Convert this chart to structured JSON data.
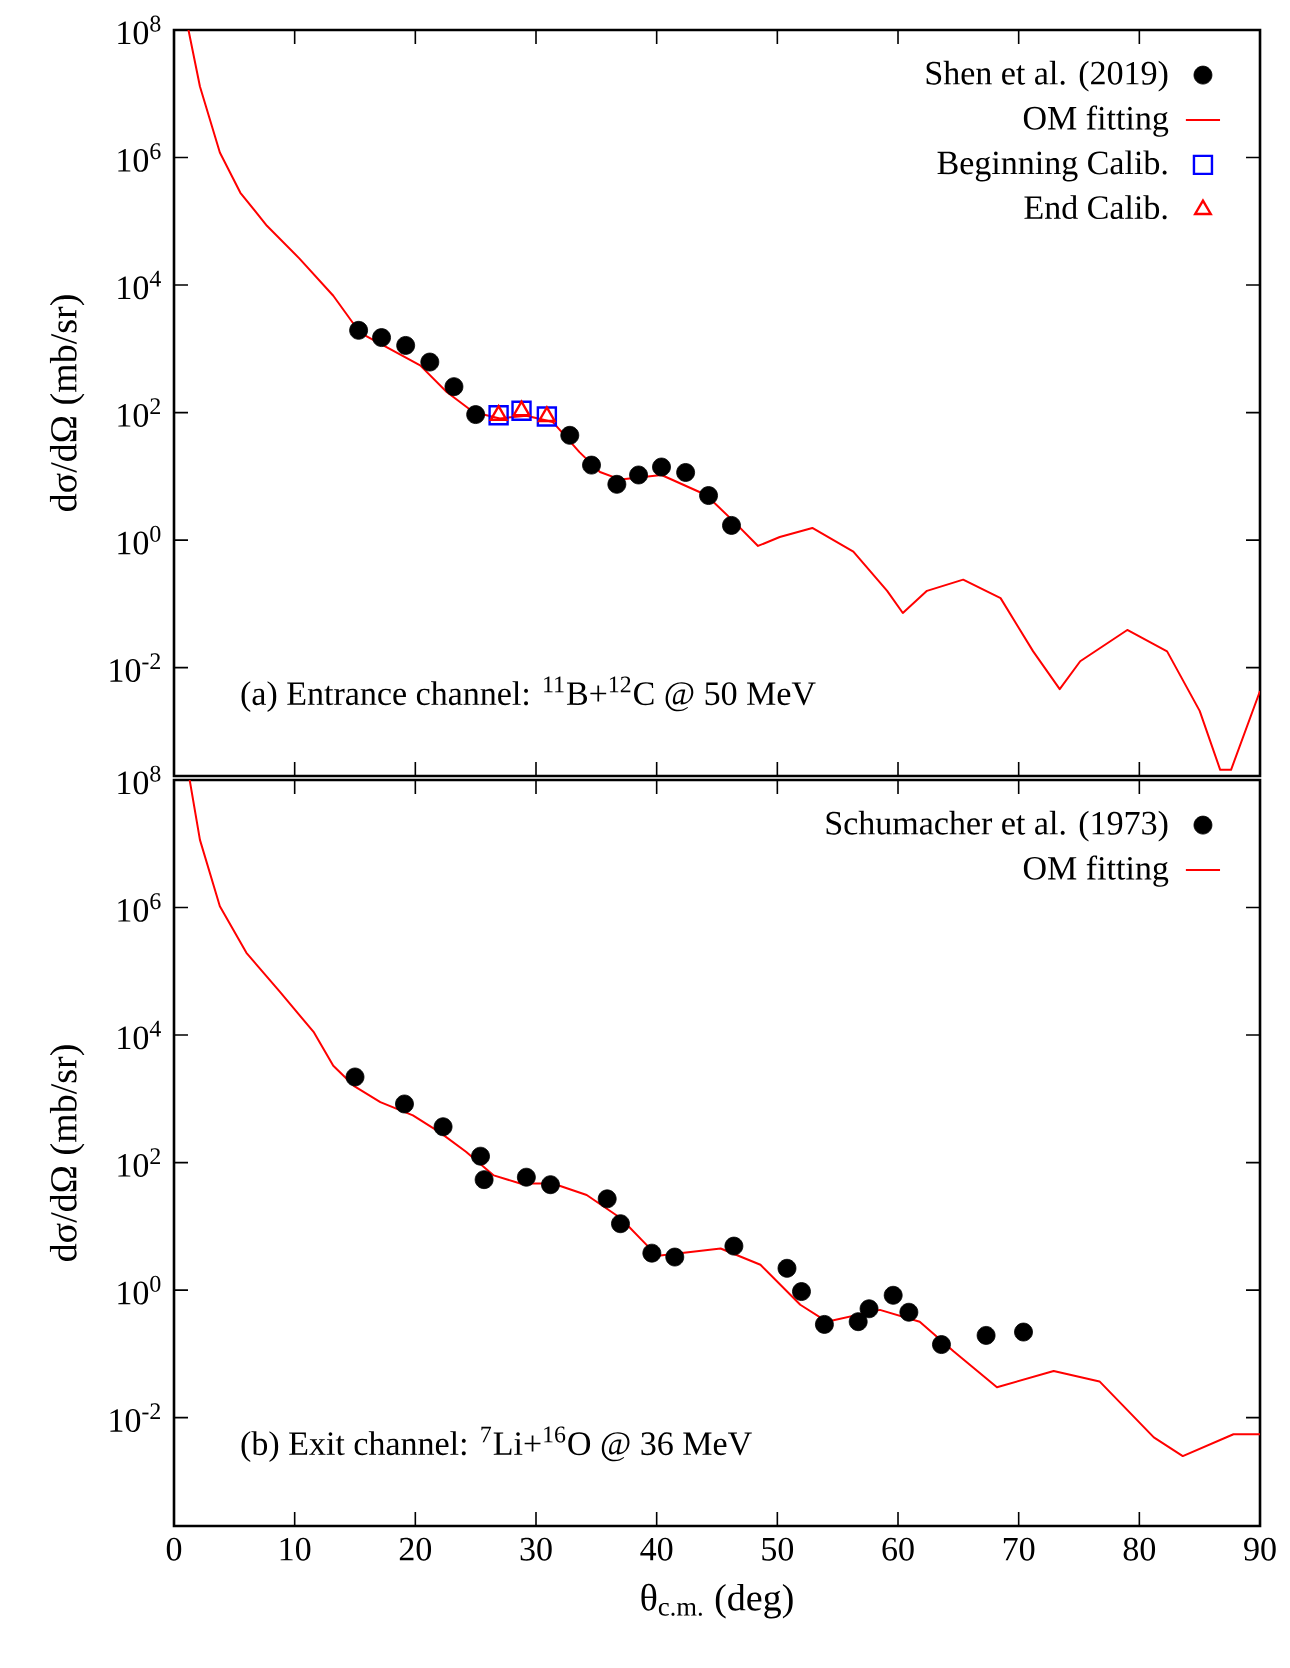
{
  "chart_data": [
    {
      "type": "scatter",
      "log": "y",
      "legend": "top right",
      "tick_labels": "y",
      "ylabel": "dσ/dΩ (mb/sr)",
      "xlim": [
        0,
        90
      ],
      "ylim": [
        0.0002,
        100000000
      ],
      "xticks": [
        0,
        10,
        20,
        30,
        40,
        50,
        60,
        70,
        80,
        90
      ],
      "yticks": [
        {
          "value": 0.01,
          "label": "10$^{-2}$"
        },
        {
          "value": 1,
          "label": "10$^{0}$"
        },
        {
          "value": 100,
          "label": "10$^{2}$"
        },
        {
          "value": 10000,
          "label": "10$^{4}$"
        },
        {
          "value": 1000000,
          "label": "10$^{6}$"
        },
        {
          "value": 100000000,
          "label": "10$^{8}$"
        }
      ],
      "annotations": [
        "(a) Entrance channel: $^{11}$B+$^{12}$C @ 50 MeV"
      ],
      "series": [
        {
          "name": "Shen et al. (2019)",
          "marker": "circle",
          "color": "#000000",
          "x": [
            15.3,
            17.2,
            19.2,
            21.2,
            23.2,
            25.0,
            32.8,
            34.6,
            36.7,
            38.5,
            40.4,
            42.4,
            44.3,
            46.2
          ],
          "values": [
            1950,
            1500,
            1130,
            620,
            255,
            93,
            44,
            15,
            7.5,
            10.5,
            14,
            11.5,
            5.0,
            1.7
          ]
        },
        {
          "name": "OM fitting",
          "type": "line",
          "marker": "none",
          "color": "#ff0000",
          "x": [
            1.2,
            2.15,
            3.8,
            5.5,
            7.7,
            10.4,
            13.2,
            15.4,
            20.4,
            22.6,
            24.8,
            27.0,
            29.2,
            31.4,
            33.6,
            35.3,
            37.0,
            40.4,
            44.1,
            46.4,
            48.4,
            50.2,
            52.9,
            56.3,
            59.1,
            60.4,
            62.4,
            65.4,
            68.5,
            71.2,
            73.4,
            75.1,
            79.0,
            82.3,
            85.0,
            86.7,
            87.6,
            90
          ],
          "values": [
            100000000,
            13000000,
            1200000,
            280000,
            85000,
            26000,
            6800,
            1800,
            550,
            210,
            102,
            81,
            89,
            71,
            24,
            11.7,
            8.9,
            10.5,
            5.1,
            1.95,
            0.81,
            1.12,
            1.55,
            0.66,
            0.16,
            0.072,
            0.16,
            0.24,
            0.123,
            0.018,
            0.0046,
            0.0126,
            0.039,
            0.018,
            0.0021,
            0.00025,
            0.00025,
            0.0043
          ]
        },
        {
          "name": "Beginning Calib.",
          "marker": "square",
          "color": "#0000ff",
          "x": [
            26.9,
            28.8,
            30.9
          ],
          "values": [
            91,
            107,
            87
          ]
        },
        {
          "name": "End Calib.",
          "marker": "triangle",
          "color": "#ff0000",
          "x": [
            26.9,
            28.8,
            30.9
          ],
          "values": [
            91,
            107,
            87
          ]
        }
      ]
    },
    {
      "type": "scatter",
      "log": "y",
      "legend": "top right",
      "xlabel": "θ$_{c.m.}$ (deg)",
      "ylabel": "dσ/dΩ (mb/sr)",
      "xlim": [
        0,
        90
      ],
      "ylim": [
        0.0002,
        100000000
      ],
      "xticks": [
        0,
        10,
        20,
        30,
        40,
        50,
        60,
        70,
        80,
        90
      ],
      "yticks": [
        {
          "value": 0.01,
          "label": "10$^{-2}$"
        },
        {
          "value": 1,
          "label": "10$^{0}$"
        },
        {
          "value": 100,
          "label": "10$^{2}$"
        },
        {
          "value": 10000,
          "label": "10$^{4}$"
        },
        {
          "value": 1000000,
          "label": "10$^{6}$"
        },
        {
          "value": 100000000,
          "label": "10$^{8}$"
        }
      ],
      "annotations": [
        "(b) Exit channel: $^{7}$Li+$^{16}$O @ 36 MeV"
      ],
      "series": [
        {
          "name": "Schumacher et al. (1973)",
          "marker": "circle",
          "color": "#000000",
          "x": [
            15.0,
            19.1,
            22.3,
            25.4,
            25.7,
            29.2,
            31.2,
            35.9,
            37.0,
            39.6,
            41.5,
            46.4,
            50.8,
            52.0,
            53.9,
            56.7,
            57.6,
            59.6,
            60.9,
            63.6,
            67.3,
            70.4
          ],
          "values": [
            2200,
            830,
            365,
            126,
            54,
            59,
            45,
            27,
            11,
            3.8,
            3.3,
            4.9,
            2.2,
            0.95,
            0.29,
            0.32,
            0.51,
            0.83,
            0.45,
            0.14,
            0.195,
            0.22
          ]
        },
        {
          "name": "OM fitting",
          "type": "line",
          "marker": "none",
          "color": "#ff0000",
          "x": [
            1.3,
            2.15,
            3.8,
            6.0,
            8.8,
            11.6,
            13.2,
            14.9,
            17.1,
            19.8,
            22.0,
            24.2,
            26.5,
            28.7,
            31.4,
            34.2,
            37.0,
            39.4,
            40.3,
            45.3,
            48.6,
            51.9,
            54.1,
            58.5,
            61.8,
            64.6,
            68.2,
            72.9,
            76.7,
            81.2,
            83.6,
            87.8,
            90
          ],
          "values": [
            100000000,
            11500000,
            1050000,
            195000,
            47000,
            11000,
            3300,
            1600,
            890,
            550,
            300,
            148,
            63,
            47,
            47,
            31,
            13.5,
            4.6,
            3.5,
            4.5,
            2.5,
            0.59,
            0.32,
            0.49,
            0.32,
            0.11,
            0.03,
            0.054,
            0.037,
            0.0049,
            0.0025,
            0.0055,
            0.0055
          ]
        }
      ]
    }
  ]
}
